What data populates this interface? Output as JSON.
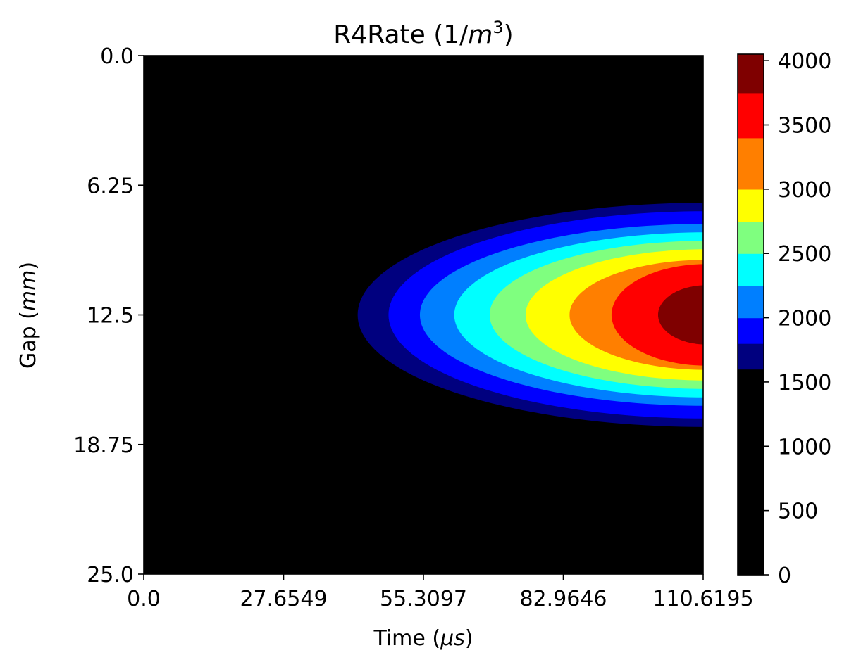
{
  "chart_data": {
    "type": "heatmap",
    "subtype": "filled-contour",
    "title": "R4Rate (1/m³)",
    "title_main": "R4Rate (1/",
    "title_var": "m",
    "title_sup": "3",
    "title_end": ")",
    "xlabel": "Time (μs)",
    "xlabel_main": "Time (",
    "xlabel_var": "μs",
    "xlabel_end": ")",
    "ylabel": "Gap (mm)",
    "ylabel_main": "Gap (",
    "ylabel_var": "mm",
    "ylabel_end": ")",
    "xlim": [
      0,
      110.6195
    ],
    "ylim": [
      25.0,
      0.0
    ],
    "y_axis_inverted": true,
    "x_ticks": [
      0.0,
      27.6549,
      55.3097,
      82.9646,
      110.6195
    ],
    "x_tick_labels": [
      "0.0",
      "27.6549",
      "55.3097",
      "82.9646",
      "110.6195"
    ],
    "y_ticks": [
      0.0,
      6.25,
      12.5,
      18.75,
      25.0
    ],
    "y_tick_labels": [
      "0.0",
      "6.25",
      "12.5",
      "18.75",
      "25.0"
    ],
    "colormap": "jet",
    "background_color": "#000000",
    "contour_levels": [
      {
        "lo": 0,
        "hi": 1600,
        "color": "#000000"
      },
      {
        "lo": 1600,
        "hi": 1800,
        "color": "#00007f"
      },
      {
        "lo": 1800,
        "hi": 2000,
        "color": "#0000ff"
      },
      {
        "lo": 2000,
        "hi": 2250,
        "color": "#007fff"
      },
      {
        "lo": 2250,
        "hi": 2500,
        "color": "#00ffff"
      },
      {
        "lo": 2500,
        "hi": 2750,
        "color": "#7fff7f"
      },
      {
        "lo": 2750,
        "hi": 3000,
        "color": "#ffff00"
      },
      {
        "lo": 3000,
        "hi": 3400,
        "color": "#ff7f00"
      },
      {
        "lo": 3400,
        "hi": 3750,
        "color": "#ff0000"
      },
      {
        "lo": 3750,
        "hi": 4050,
        "color": "#7f0000"
      }
    ],
    "contour_regions": [
      {
        "color": "#00007f",
        "x_left": 41.7,
        "y_center": 12.5,
        "y_halfwidth_at_xmax": 5.3
      },
      {
        "color": "#0000ff",
        "x_left": 47.8,
        "y_center": 12.5,
        "y_halfwidth_at_xmax": 4.9
      },
      {
        "color": "#007fff",
        "x_left": 54.0,
        "y_center": 12.5,
        "y_halfwidth_at_xmax": 4.3
      },
      {
        "color": "#00ffff",
        "x_left": 60.8,
        "y_center": 12.5,
        "y_halfwidth_at_xmax": 3.9
      },
      {
        "color": "#7fff7f",
        "x_left": 67.8,
        "y_center": 12.5,
        "y_halfwidth_at_xmax": 3.5
      },
      {
        "color": "#ffff00",
        "x_left": 74.9,
        "y_center": 12.5,
        "y_halfwidth_at_xmax": 3.1
      },
      {
        "color": "#ff7f00",
        "x_left": 83.6,
        "y_center": 12.5,
        "y_halfwidth_at_xmax": 2.6
      },
      {
        "color": "#ff0000",
        "x_left": 91.9,
        "y_center": 12.5,
        "y_halfwidth_at_xmax": 2.4
      },
      {
        "color": "#7f0000",
        "x_left": 101.1,
        "y_center": 12.5,
        "y_halfwidth_at_xmax": 1.4
      }
    ],
    "colorbar": {
      "range": [
        0,
        4050
      ],
      "ticks": [
        0,
        500,
        1000,
        1500,
        2000,
        2500,
        3000,
        3500,
        4000
      ],
      "tick_labels": [
        "0",
        "500",
        "1000",
        "1500",
        "2000",
        "2500",
        "3000",
        "3500",
        "4000"
      ]
    }
  }
}
